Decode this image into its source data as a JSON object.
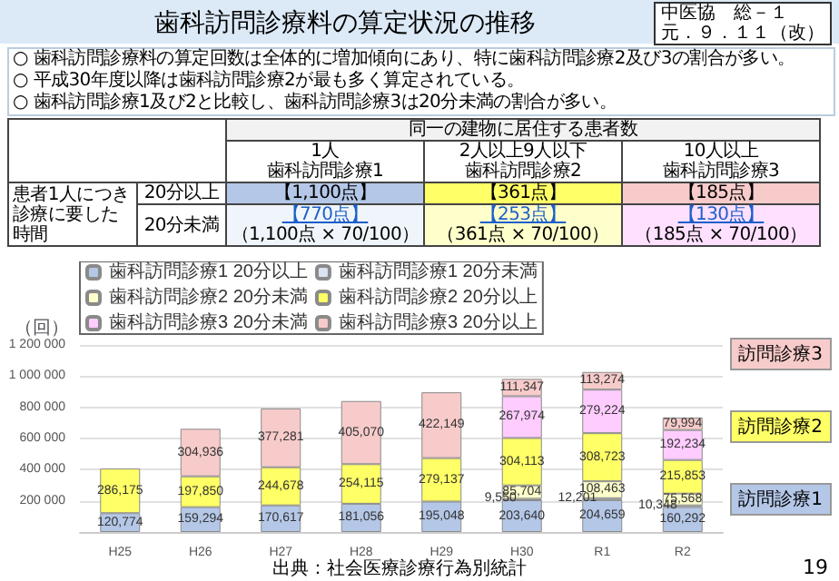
{
  "chart_data": {
    "type": "bar",
    "title": "歯科訪問診療料の算定状況の推移",
    "ylabel": "（回）",
    "stacked": true,
    "grid": "y",
    "legend": "top left",
    "categories": [
      "H25",
      "H26",
      "H27",
      "H28",
      "H29",
      "H30",
      "R1",
      "R2"
    ],
    "ylim": [
      0,
      1200000
    ],
    "yticks": [
      {
        "value": 0,
        "label": null
      },
      {
        "value": 200000,
        "label": "200 000"
      },
      {
        "value": 400000,
        "label": "400 000"
      },
      {
        "value": 600000,
        "label": "600 000"
      },
      {
        "value": 800000,
        "label": "800 000"
      },
      {
        "value": 1000000,
        "label": "1 000 000"
      },
      {
        "value": 1200000,
        "label": "1 200 000"
      }
    ],
    "series": [
      {
        "name": "歯科訪問診療1 20分以上",
        "color": "#b4c7e7",
        "values": [
          120774,
          159294,
          170617,
          181056,
          195048,
          203640,
          204659,
          160292
        ],
        "value_labels": [
          "120,774",
          "159,294",
          "170,617",
          "181,056",
          "195,048",
          "203,640",
          "204,659",
          "160,292"
        ]
      },
      {
        "name": "歯科訪問診療1 20分未満",
        "color": "#dae3f3",
        "values": [
          null,
          null,
          null,
          null,
          null,
          9550,
          12201,
          10348
        ],
        "value_labels": [
          null,
          null,
          null,
          null,
          null,
          "9,550",
          "12,201",
          "10,348"
        ]
      },
      {
        "name": "歯科訪問診療2 20分未満",
        "color": "#ffffcc",
        "values": [
          null,
          null,
          null,
          null,
          null,
          85704,
          108463,
          75568
        ],
        "value_labels": [
          null,
          null,
          null,
          null,
          null,
          "85,704",
          "108,463",
          "75,568"
        ]
      },
      {
        "name": "歯科訪問診療2 20分以上",
        "color": "#ffff66",
        "values": [
          286175,
          197850,
          244678,
          254115,
          279137,
          304113,
          308723,
          215853
        ],
        "value_labels": [
          "286,175",
          "197,850",
          "244,678",
          "254,115",
          "279,137",
          "304,113",
          "308,723",
          "215,853"
        ]
      },
      {
        "name": "歯科訪問診療3 20分未満",
        "color": "#ffccff",
        "values": [
          null,
          null,
          null,
          null,
          null,
          267974,
          279224,
          192234
        ],
        "value_labels": [
          null,
          null,
          null,
          null,
          null,
          "267,974",
          "279,224",
          "192,234"
        ]
      },
      {
        "name": "歯科訪問診療3 20分以上",
        "color": "#f8cbcb",
        "values": [
          null,
          304936,
          377281,
          405070,
          422149,
          111347,
          113274,
          79994
        ],
        "value_labels": [
          null,
          "304,936",
          "377,281",
          "405,070",
          "422,149",
          "111,347",
          "113,274",
          "79,994"
        ]
      }
    ],
    "annotations": [
      "中医協　総－１",
      "元．９．１１（改）",
      "○ 歯科訪問診療料の算定回数は全体的に増加傾向にあり、特に歯科訪問診療2及び3の割合が多い。",
      "○ 平成30年度以降は歯科訪問診療2が最も多く算定されている。",
      "○ 歯科訪問診療1及び2と比較し、歯科訪問診療3は20分未満の割合が多い。",
      "同一の建物に居住する患者数",
      "1人",
      "歯科訪問診療1",
      "2人以上9人以下",
      "歯科訪問診療2",
      "10人以上",
      "歯科訪問診療3",
      "患者1人につき診療に要した時間",
      "20分以上",
      "【1,100点】",
      "【361点】",
      "【185点】",
      "20分未満",
      "【770点】",
      "（1,100点 × 70/100）",
      "【253点】",
      "（361点 × 70/100）",
      "【130点】",
      "（185点 × 70/100）",
      "訪問診療3",
      "訪問診療2",
      "訪問診療1",
      "出典：社会医療診療行為別統計",
      "19"
    ]
  }
}
